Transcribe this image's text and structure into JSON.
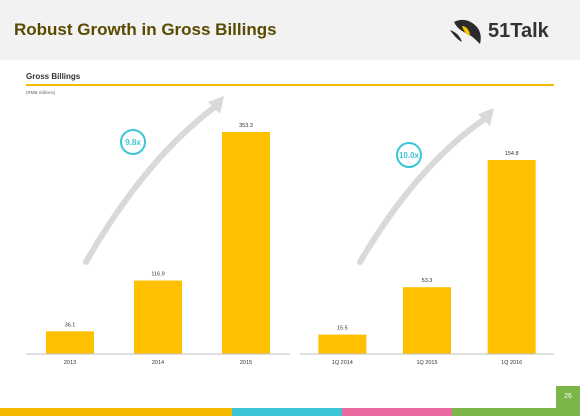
{
  "header": {
    "title": "Robust Growth in Gross Billings",
    "logo_text": "51Talk"
  },
  "chart_header": {
    "subtitle": "Gross Billings",
    "units": "(RMB millions)"
  },
  "page_number": "26",
  "colors": {
    "bar": "#FFC000",
    "accent_rule": "#F5B800",
    "badge": "#3BC6D6",
    "arrow": "#D9D9D9"
  },
  "chart_data": [
    {
      "type": "bar",
      "categories": [
        "2013",
        "2014",
        "2015"
      ],
      "values": [
        36.1,
        116.9,
        353.3
      ],
      "value_labels": [
        "36.1",
        "116.9",
        "353.3"
      ],
      "growth_badge": "9.8x",
      "ylim": [
        0,
        353.3
      ]
    },
    {
      "type": "bar",
      "categories": [
        "1Q 2014",
        "1Q 2015",
        "1Q 2016"
      ],
      "values": [
        15.5,
        53.3,
        154.8
      ],
      "value_labels": [
        "15.5",
        "53.3",
        "154.8"
      ],
      "growth_badge": "10.0x",
      "ylim": [
        0,
        154.8
      ]
    }
  ]
}
